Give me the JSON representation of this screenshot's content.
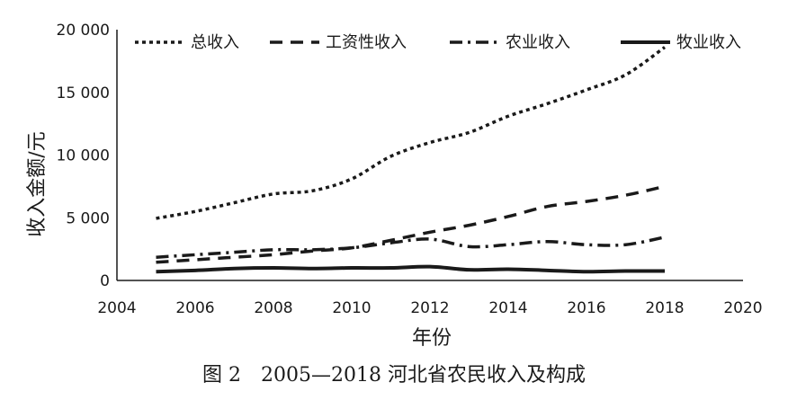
{
  "chart_data": {
    "type": "line",
    "xlabel": "年份",
    "ylabel": "收入金额/元",
    "caption": "图 2　2005—2018 河北省农民收入及构成",
    "xlim": [
      2004,
      2020
    ],
    "ylim": [
      0,
      20000
    ],
    "xticks": [
      "2004",
      "2006",
      "2008",
      "2010",
      "2012",
      "2014",
      "2016",
      "2018",
      "2020"
    ],
    "yticks": [
      "0",
      "5 000",
      "10 000",
      "15 000",
      "20 000"
    ],
    "grid": false,
    "legend_position": "top",
    "x": [
      2005,
      2006,
      2007,
      2008,
      2009,
      2010,
      2011,
      2012,
      2013,
      2014,
      2015,
      2016,
      2017,
      2018
    ],
    "series": [
      {
        "name": "总收入",
        "style": "dotted",
        "color": "#1a1a1a",
        "values": [
          4950,
          5500,
          6200,
          6900,
          7150,
          8100,
          9900,
          11000,
          11800,
          13100,
          14100,
          15200,
          16400,
          18600
        ]
      },
      {
        "name": "工资性收入",
        "style": "dashed",
        "color": "#1a1a1a",
        "values": [
          1450,
          1650,
          1850,
          2050,
          2350,
          2600,
          3200,
          3850,
          4400,
          5100,
          5900,
          6300,
          6800,
          7500
        ]
      },
      {
        "name": "农业收入",
        "style": "dashdot",
        "color": "#1a1a1a",
        "values": [
          1850,
          2050,
          2250,
          2450,
          2450,
          2600,
          3000,
          3300,
          2700,
          2850,
          3100,
          2850,
          2850,
          3450
        ]
      },
      {
        "name": "牧业收入",
        "style": "solid",
        "color": "#1a1a1a",
        "values": [
          700,
          800,
          950,
          1000,
          950,
          1000,
          1000,
          1100,
          850,
          900,
          800,
          700,
          750,
          750
        ]
      }
    ]
  }
}
